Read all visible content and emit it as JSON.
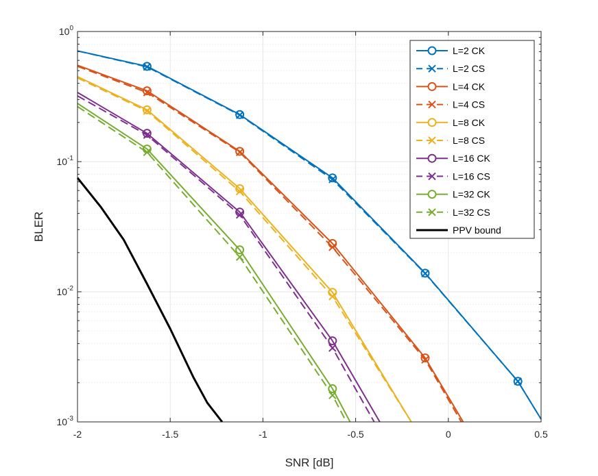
{
  "chart_data": {
    "type": "line",
    "title": "",
    "xlabel": "SNR [dB]",
    "ylabel": "BLER",
    "yscale": "log",
    "xlim": [
      -2,
      0.5
    ],
    "ylim": [
      0.001,
      1
    ],
    "grid": true,
    "legend_position": "top-right",
    "x_ticks": [
      -2,
      -1.5,
      -1,
      -0.5,
      0,
      0.5
    ],
    "x_tick_labels": [
      "-2",
      "-1.5",
      "-1",
      "-0.5",
      "0",
      "0.5"
    ],
    "y_ticks": [
      0.001,
      0.01,
      0.1,
      1
    ],
    "y_tick_labels": [
      {
        "base": "10",
        "exp": "-3"
      },
      {
        "base": "10",
        "exp": "-2"
      },
      {
        "base": "10",
        "exp": "-1"
      },
      {
        "base": "10",
        "exp": "0"
      }
    ],
    "series": [
      {
        "name": "L=2 CK",
        "color": "#0072BD",
        "dash": "solid",
        "marker": "circle",
        "x": [
          -2,
          -1.625,
          -1.125,
          -0.625,
          -0.125,
          0.375,
          0.5
        ],
        "y": [
          0.71,
          0.54,
          0.23,
          0.075,
          0.0139,
          0.00205,
          0.00105
        ]
      },
      {
        "name": "L=2 CS",
        "color": "#0072BD",
        "dash": "dashed",
        "marker": "x",
        "x": [
          -2,
          -1.625,
          -1.125,
          -0.625,
          -0.125,
          0.375,
          0.5
        ],
        "y": [
          0.71,
          0.535,
          0.228,
          0.073,
          0.0138,
          0.00205,
          0.00105
        ]
      },
      {
        "name": "L=4 CK",
        "color": "#D95319",
        "dash": "solid",
        "marker": "circle",
        "x": [
          -2,
          -1.625,
          -1.125,
          -0.625,
          -0.125,
          0.08
        ],
        "y": [
          0.55,
          0.35,
          0.12,
          0.0235,
          0.0031,
          0.001
        ]
      },
      {
        "name": "L=4 CS",
        "color": "#D95319",
        "dash": "dashed",
        "marker": "x",
        "x": [
          -2,
          -1.625,
          -1.125,
          -0.625,
          -0.125,
          0.07
        ],
        "y": [
          0.54,
          0.34,
          0.118,
          0.022,
          0.003,
          0.001
        ]
      },
      {
        "name": "L=8 CK",
        "color": "#EDB120",
        "dash": "solid",
        "marker": "circle",
        "x": [
          -2,
          -1.625,
          -1.125,
          -0.625,
          -0.2
        ],
        "y": [
          0.45,
          0.25,
          0.062,
          0.0099,
          0.001
        ]
      },
      {
        "name": "L=8 CS",
        "color": "#EDB120",
        "dash": "dashed",
        "marker": "x",
        "x": [
          -2,
          -1.625,
          -1.125,
          -0.625,
          -0.2
        ],
        "y": [
          0.44,
          0.245,
          0.059,
          0.0092,
          0.001
        ]
      },
      {
        "name": "L=16 CK",
        "color": "#7E2F8E",
        "dash": "solid",
        "marker": "circle",
        "x": [
          -2,
          -1.625,
          -1.125,
          -0.625,
          -0.37
        ],
        "y": [
          0.34,
          0.165,
          0.041,
          0.0042,
          0.001
        ]
      },
      {
        "name": "L=16 CS",
        "color": "#7E2F8E",
        "dash": "dashed",
        "marker": "x",
        "x": [
          -2,
          -1.625,
          -1.125,
          -0.625,
          -0.4
        ],
        "y": [
          0.32,
          0.16,
          0.039,
          0.0037,
          0.001
        ]
      },
      {
        "name": "L=32 CK",
        "color": "#77AC30",
        "dash": "solid",
        "marker": "circle",
        "x": [
          -2,
          -1.625,
          -1.125,
          -0.625,
          -0.53
        ],
        "y": [
          0.28,
          0.125,
          0.021,
          0.0018,
          0.001
        ]
      },
      {
        "name": "L=32 CS",
        "color": "#77AC30",
        "dash": "dashed",
        "marker": "x",
        "x": [
          -2,
          -1.625,
          -1.125,
          -0.625,
          -0.55
        ],
        "y": [
          0.265,
          0.118,
          0.0185,
          0.0016,
          0.001
        ]
      },
      {
        "name": "PPV bound",
        "color": "#000000",
        "dash": "solid",
        "marker": "none",
        "x": [
          -2,
          -1.875,
          -1.75,
          -1.625,
          -1.5,
          -1.375,
          -1.3,
          -1.22
        ],
        "y": [
          0.075,
          0.045,
          0.025,
          0.0115,
          0.0052,
          0.0022,
          0.0014,
          0.001
        ]
      }
    ]
  }
}
